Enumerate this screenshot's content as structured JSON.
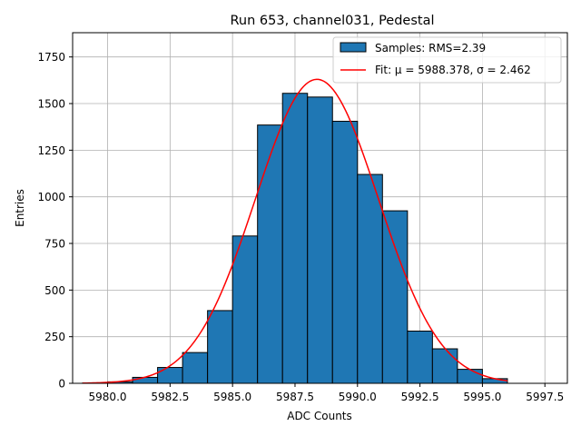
{
  "chart_data": {
    "type": "bar",
    "title": "Run 653, channel031, Pedestal",
    "xlabel": "ADC Counts",
    "ylabel": "Entries",
    "xlim": [
      5978.6,
      5998.4
    ],
    "ylim": [
      0,
      1880
    ],
    "xticks": [
      5980.0,
      5982.5,
      5985.0,
      5987.5,
      5990.0,
      5992.5,
      5995.0,
      5997.5
    ],
    "xtick_labels": [
      "5980.0",
      "5982.5",
      "5985.0",
      "5987.5",
      "5990.0",
      "5992.5",
      "5995.0",
      "5997.5"
    ],
    "yticks": [
      0,
      250,
      500,
      750,
      1000,
      1250,
      1500,
      1750
    ],
    "ytick_labels": [
      "0",
      "250",
      "500",
      "750",
      "1000",
      "1250",
      "1500",
      "1750"
    ],
    "grid": true,
    "legend_position": "top-right",
    "histogram": {
      "name": "Samples: RMS=2.39",
      "color": "#1f77b4",
      "edge_color": "#000000",
      "bin_edges": [
        5979,
        5980,
        5981,
        5982,
        5983,
        5984,
        5985,
        5986,
        5987,
        5988,
        5989,
        5990,
        5991,
        5992,
        5993,
        5994,
        5995,
        5996
      ],
      "counts": [
        2,
        8,
        32,
        85,
        165,
        390,
        790,
        1385,
        1555,
        1535,
        1405,
        1120,
        925,
        280,
        185,
        75,
        25
      ]
    },
    "fit": {
      "name": "Fit: μ = 5988.378, σ = 2.462",
      "color": "#ff0000",
      "mu": 5988.378,
      "sigma": 2.462,
      "amplitude": 1630,
      "x_range": [
        5979,
        5996
      ]
    }
  }
}
